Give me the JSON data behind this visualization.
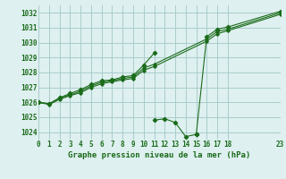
{
  "title": "Graphe pression niveau de la mer (hPa)",
  "bg_color": "#dff0f0",
  "grid_color": "#aacccc",
  "line_color": "#1a6b1a",
  "xlim": [
    0,
    23
  ],
  "ylim": [
    1023.5,
    1032.5
  ],
  "xticks": [
    0,
    1,
    2,
    3,
    4,
    5,
    6,
    7,
    8,
    9,
    10,
    11,
    12,
    13,
    14,
    15,
    16,
    17,
    18,
    23
  ],
  "yticks": [
    1024,
    1025,
    1026,
    1027,
    1028,
    1029,
    1030,
    1031,
    1032
  ],
  "seg_a": [
    [
      0,
      1026.0
    ],
    [
      1,
      1025.9
    ],
    [
      2,
      1026.3
    ],
    [
      3,
      1026.6
    ],
    [
      4,
      1026.85
    ],
    [
      5,
      1027.2
    ],
    [
      6,
      1027.45
    ],
    [
      7,
      1027.5
    ],
    [
      8,
      1027.7
    ],
    [
      9,
      1027.8
    ],
    [
      10,
      1028.5
    ],
    [
      11,
      1029.3
    ]
  ],
  "seg_b": [
    [
      11,
      1024.8
    ],
    [
      12,
      1024.9
    ],
    [
      13,
      1024.65
    ],
    [
      14,
      1023.7
    ],
    [
      15,
      1023.85
    ]
  ],
  "seg_c": [
    [
      15,
      1023.85
    ],
    [
      16,
      1030.4
    ],
    [
      17,
      1030.9
    ],
    [
      18,
      1031.05
    ],
    [
      23,
      1032.1
    ]
  ],
  "trend1": [
    [
      0,
      1026.0
    ],
    [
      1,
      1025.9
    ],
    [
      2,
      1026.3
    ],
    [
      3,
      1026.5
    ],
    [
      4,
      1026.75
    ],
    [
      5,
      1027.1
    ],
    [
      6,
      1027.35
    ],
    [
      7,
      1027.45
    ],
    [
      8,
      1027.6
    ],
    [
      9,
      1027.7
    ],
    [
      10,
      1028.3
    ],
    [
      11,
      1028.55
    ],
    [
      16,
      1030.25
    ],
    [
      17,
      1030.75
    ],
    [
      18,
      1030.9
    ],
    [
      23,
      1032.0
    ]
  ],
  "trend2": [
    [
      0,
      1026.0
    ],
    [
      1,
      1025.85
    ],
    [
      2,
      1026.2
    ],
    [
      3,
      1026.45
    ],
    [
      4,
      1026.65
    ],
    [
      5,
      1027.0
    ],
    [
      6,
      1027.25
    ],
    [
      7,
      1027.38
    ],
    [
      8,
      1027.5
    ],
    [
      9,
      1027.6
    ],
    [
      10,
      1028.15
    ],
    [
      11,
      1028.4
    ],
    [
      16,
      1030.1
    ],
    [
      17,
      1030.6
    ],
    [
      18,
      1030.8
    ],
    [
      23,
      1031.9
    ]
  ]
}
